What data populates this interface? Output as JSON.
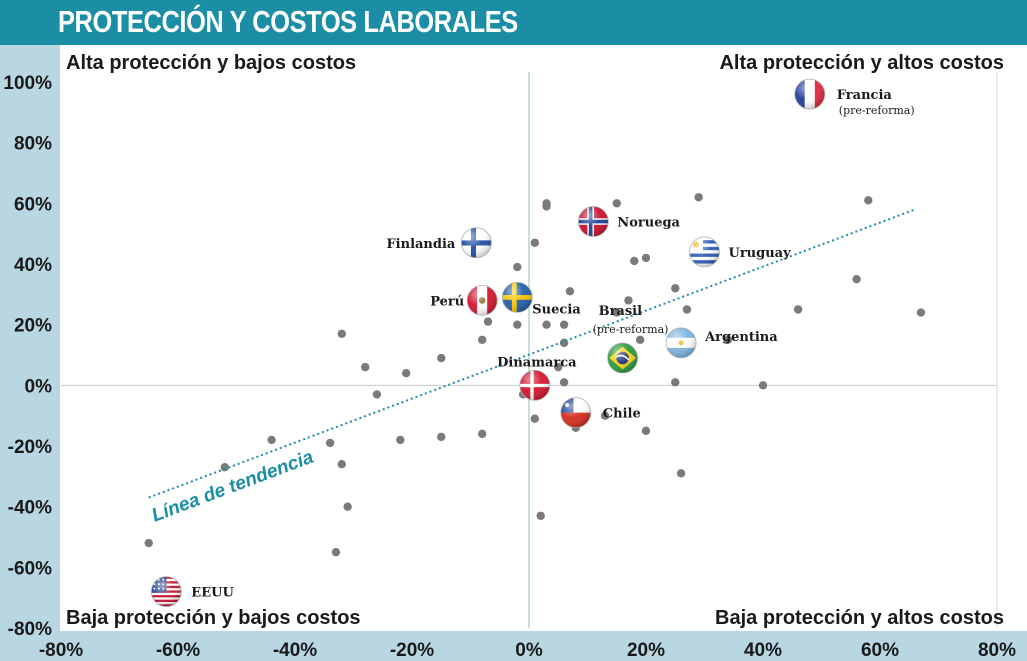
{
  "title": "PROTECCIÓN Y COSTOS LABORALES",
  "chart_data": {
    "type": "scatter",
    "xlim": [
      -80,
      80
    ],
    "ylim": [
      -80,
      100
    ],
    "x_unit": "%",
    "y_unit": "%",
    "x_ticks": [
      "-80%",
      "-60%",
      "-40%",
      "-20%",
      "0%",
      "20%",
      "40%",
      "60%",
      "80%"
    ],
    "y_ticks": [
      "100%",
      "80%",
      "60%",
      "40%",
      "20%",
      "0%",
      "-20%",
      "-40%",
      "-60%",
      "-80%"
    ],
    "quadrant_labels": {
      "top_left": "Alta protección y bajos costos",
      "top_right": "Alta protección y altos costos",
      "bottom_left": "Baja protección y bajos costos",
      "bottom_right": "Baja protección y altos costos"
    },
    "trendline": {
      "label": "Línea de tendencia",
      "start": [
        -65,
        -37
      ],
      "end": [
        66,
        58
      ]
    },
    "labeled_points": [
      {
        "label": "Francia",
        "sublabel": "(pre-reforma)",
        "x": 48,
        "y": 96,
        "flag": "france-flag"
      },
      {
        "label": "Noruega",
        "x": 11,
        "y": 54,
        "flag": "norway-flag"
      },
      {
        "label": "Finlandia",
        "x": -9,
        "y": 47,
        "flag": "finland-flag"
      },
      {
        "label": "Uruguay",
        "x": 30,
        "y": 44,
        "flag": "uruguay-flag"
      },
      {
        "label": "Perú",
        "x": -8,
        "y": 28,
        "flag": "peru-flag"
      },
      {
        "label": "Suecia",
        "x": -2,
        "y": 29,
        "flag": "sweden-flag"
      },
      {
        "label": "Brasil",
        "sublabel": "(pre-reforma)",
        "x": 16,
        "y": 9,
        "flag": "brazil-flag"
      },
      {
        "label": "Argentina",
        "x": 26,
        "y": 14,
        "flag": "argentina-flag"
      },
      {
        "label": "Dinamarca",
        "x": 1,
        "y": 0,
        "flag": "denmark-flag"
      },
      {
        "label": "Chile",
        "x": 8,
        "y": -9,
        "flag": "chile-flag"
      },
      {
        "label": "EEUU",
        "x": -62,
        "y": -68,
        "flag": "usa-flag"
      }
    ],
    "points": [
      [
        -65,
        -52
      ],
      [
        -52,
        -27
      ],
      [
        -44,
        -18
      ],
      [
        -34,
        -19
      ],
      [
        -32,
        -26
      ],
      [
        -31,
        -40
      ],
      [
        -33,
        -55
      ],
      [
        -32,
        17
      ],
      [
        -28,
        6
      ],
      [
        -26,
        -3
      ],
      [
        -22,
        -18
      ],
      [
        -21,
        4
      ],
      [
        -15,
        9
      ],
      [
        -15,
        -17
      ],
      [
        -8,
        -16
      ],
      [
        -8,
        15
      ],
      [
        -7,
        21
      ],
      [
        -2,
        39
      ],
      [
        -2,
        20
      ],
      [
        1,
        47
      ],
      [
        3,
        59
      ],
      [
        3,
        60
      ],
      [
        5,
        6
      ],
      [
        3,
        20
      ],
      [
        6,
        20
      ],
      [
        6,
        14
      ],
      [
        6,
        1
      ],
      [
        7,
        31
      ],
      [
        8,
        -14
      ],
      [
        13,
        -10
      ],
      [
        15,
        24
      ],
      [
        15,
        60
      ],
      [
        17,
        28
      ],
      [
        18,
        41
      ],
      [
        20,
        42
      ],
      [
        19,
        15
      ],
      [
        20,
        -15
      ],
      [
        25,
        32
      ],
      [
        25,
        1
      ],
      [
        26,
        -29
      ],
      [
        27,
        25
      ],
      [
        29,
        62
      ],
      [
        34,
        15
      ],
      [
        40,
        0
      ],
      [
        46,
        25
      ],
      [
        56,
        35
      ],
      [
        58,
        61
      ],
      [
        67,
        24
      ],
      [
        -1,
        -3
      ],
      [
        1,
        -11
      ],
      [
        2,
        -43
      ]
    ]
  }
}
